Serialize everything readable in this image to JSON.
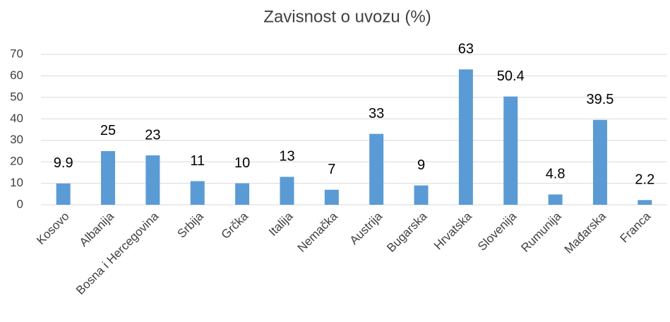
{
  "chart_data": {
    "type": "bar",
    "title": "Zavisnost o uvozu (%)",
    "categories": [
      "Kosovo",
      "Albanija",
      "Bosna i Hercegovina",
      "Srbija",
      "Grčka",
      "Italija",
      "Nemačka",
      "Austrija",
      "Bugarska",
      "Hrvatska",
      "Slovenija",
      "Rumunija",
      "Mađarska",
      "Franca"
    ],
    "values": [
      9.9,
      25,
      23,
      11,
      10,
      13,
      7,
      33,
      9,
      63,
      50.4,
      4.8,
      39.5,
      2.2
    ],
    "color": "#5b9bd5",
    "ylim": [
      0,
      70
    ],
    "yticks": [
      0,
      10,
      20,
      30,
      40,
      50,
      60,
      70
    ],
    "grid": true
  }
}
